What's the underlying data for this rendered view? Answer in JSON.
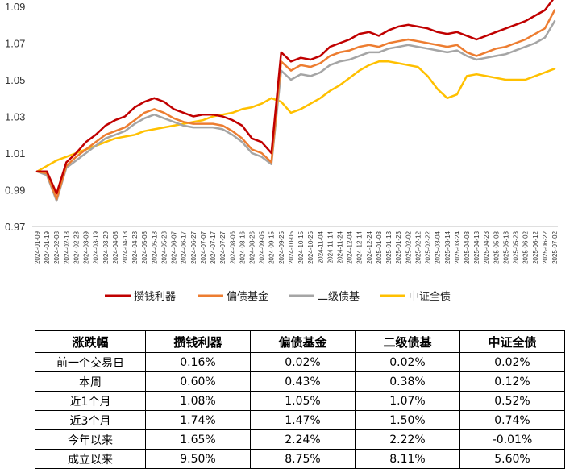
{
  "chart_data": {
    "type": "line",
    "ylim": [
      0.97,
      1.09
    ],
    "yticks": [
      "0.97",
      "0.99",
      "1.01",
      "1.03",
      "1.05",
      "1.07",
      "1.09"
    ],
    "grid": false,
    "legend_position": "bottom",
    "x": [
      "2024-01-09",
      "2024-01-19",
      "2024-02-08",
      "2024-02-18",
      "2024-02-28",
      "2024-03-09",
      "2024-03-19",
      "2024-03-29",
      "2024-04-08",
      "2024-04-18",
      "2024-04-28",
      "2024-05-08",
      "2024-05-18",
      "2024-05-28",
      "2024-06-07",
      "2024-06-17",
      "2024-06-27",
      "2024-07-07",
      "2024-07-17",
      "2024-07-27",
      "2024-08-06",
      "2024-08-16",
      "2024-08-26",
      "2024-09-05",
      "2024-09-15",
      "2024-09-25",
      "2024-10-05",
      "2024-10-15",
      "2024-10-25",
      "2024-11-04",
      "2024-11-14",
      "2024-11-24",
      "2024-12-04",
      "2024-12-14",
      "2024-12-24",
      "2025-01-03",
      "2025-01-13",
      "2025-01-23",
      "2025-02-02",
      "2025-02-12",
      "2025-02-22",
      "2025-03-04",
      "2025-03-14",
      "2025-03-24",
      "2025-04-03",
      "2025-04-13",
      "2025-04-23",
      "2025-05-03",
      "2025-05-13",
      "2025-05-23",
      "2025-06-02",
      "2025-06-12",
      "2025-06-22",
      "2025-07-02"
    ],
    "series": [
      {
        "name": "攒钱利器",
        "color": "#c00000",
        "values": [
          1.0,
          1.0,
          0.988,
          1.005,
          1.01,
          1.016,
          1.02,
          1.025,
          1.028,
          1.03,
          1.035,
          1.038,
          1.04,
          1.038,
          1.034,
          1.032,
          1.03,
          1.031,
          1.031,
          1.03,
          1.028,
          1.025,
          1.018,
          1.016,
          1.01,
          1.065,
          1.06,
          1.062,
          1.061,
          1.063,
          1.068,
          1.07,
          1.072,
          1.075,
          1.076,
          1.074,
          1.077,
          1.079,
          1.08,
          1.079,
          1.078,
          1.076,
          1.075,
          1.076,
          1.074,
          1.072,
          1.074,
          1.076,
          1.078,
          1.08,
          1.082,
          1.085,
          1.088,
          1.095
        ]
      },
      {
        "name": "偏债基金",
        "color": "#ed7d31",
        "values": [
          1.0,
          0.999,
          0.985,
          1.003,
          1.008,
          1.012,
          1.016,
          1.02,
          1.022,
          1.024,
          1.028,
          1.032,
          1.034,
          1.032,
          1.029,
          1.027,
          1.026,
          1.026,
          1.026,
          1.025,
          1.022,
          1.018,
          1.012,
          1.01,
          1.005,
          1.06,
          1.055,
          1.058,
          1.057,
          1.059,
          1.063,
          1.065,
          1.066,
          1.068,
          1.069,
          1.068,
          1.07,
          1.071,
          1.072,
          1.071,
          1.07,
          1.069,
          1.068,
          1.069,
          1.065,
          1.063,
          1.065,
          1.067,
          1.068,
          1.07,
          1.072,
          1.075,
          1.078,
          1.088
        ]
      },
      {
        "name": "二级债基",
        "color": "#a5a5a5",
        "values": [
          1.0,
          0.998,
          0.984,
          1.002,
          1.006,
          1.01,
          1.014,
          1.018,
          1.02,
          1.022,
          1.026,
          1.029,
          1.031,
          1.029,
          1.027,
          1.025,
          1.024,
          1.024,
          1.024,
          1.023,
          1.02,
          1.016,
          1.01,
          1.008,
          1.004,
          1.055,
          1.05,
          1.053,
          1.052,
          1.054,
          1.058,
          1.06,
          1.061,
          1.063,
          1.065,
          1.065,
          1.067,
          1.068,
          1.069,
          1.068,
          1.067,
          1.066,
          1.065,
          1.066,
          1.063,
          1.061,
          1.062,
          1.063,
          1.064,
          1.066,
          1.068,
          1.07,
          1.073,
          1.082
        ]
      },
      {
        "name": "中证全债",
        "color": "#ffc000",
        "values": [
          1.0,
          1.003,
          1.006,
          1.008,
          1.01,
          1.012,
          1.014,
          1.016,
          1.018,
          1.019,
          1.02,
          1.022,
          1.023,
          1.024,
          1.025,
          1.026,
          1.027,
          1.028,
          1.03,
          1.031,
          1.032,
          1.034,
          1.035,
          1.037,
          1.04,
          1.038,
          1.032,
          1.034,
          1.037,
          1.04,
          1.044,
          1.047,
          1.051,
          1.055,
          1.058,
          1.06,
          1.06,
          1.059,
          1.058,
          1.057,
          1.052,
          1.045,
          1.04,
          1.042,
          1.052,
          1.053,
          1.052,
          1.051,
          1.05,
          1.05,
          1.05,
          1.052,
          1.054,
          1.056
        ]
      }
    ]
  },
  "table": {
    "headers": [
      "涨跌幅",
      "攒钱利器",
      "偏债基金",
      "二级债基",
      "中证全债"
    ],
    "rows": [
      [
        "前一个交易日",
        "0.16%",
        "0.02%",
        "0.02%",
        "0.02%"
      ],
      [
        "本周",
        "0.60%",
        "0.43%",
        "0.38%",
        "0.12%"
      ],
      [
        "近1个月",
        "1.08%",
        "1.05%",
        "1.07%",
        "0.52%"
      ],
      [
        "近3个月",
        "1.74%",
        "1.47%",
        "1.50%",
        "0.74%"
      ],
      [
        "今年以来",
        "1.65%",
        "2.24%",
        "2.22%",
        "-0.01%"
      ],
      [
        "成立以来",
        "9.50%",
        "8.75%",
        "8.11%",
        "5.60%"
      ]
    ]
  }
}
